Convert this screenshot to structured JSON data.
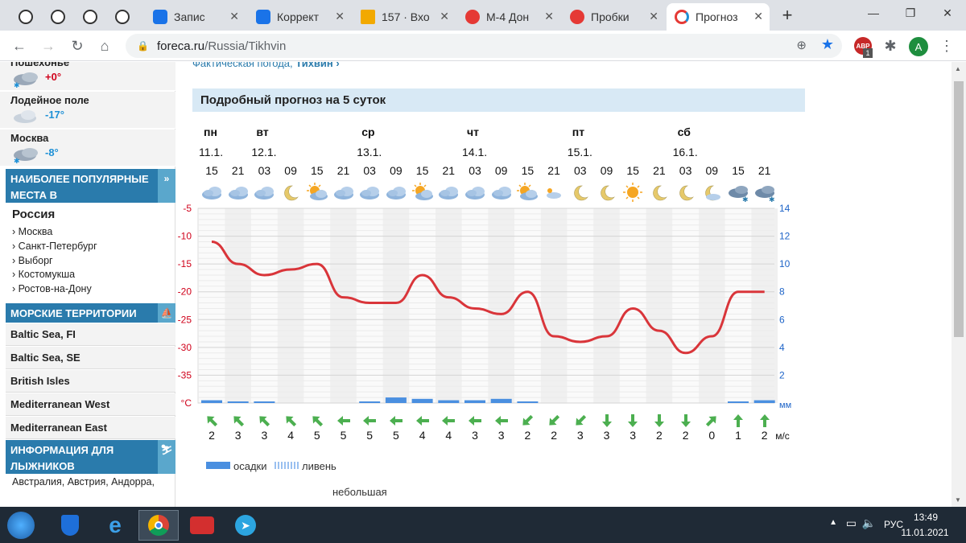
{
  "browser": {
    "tabs": [
      {
        "title": "Запис",
        "pinned": false
      },
      {
        "title": "Коррект",
        "pinned": false
      },
      {
        "title": "157 · Вхо",
        "pinned": false
      },
      {
        "title": "М-4 Дон",
        "pinned": false
      },
      {
        "title": "Пробки",
        "pinned": false
      },
      {
        "title": "Прогноз",
        "pinned": false,
        "active": true
      }
    ],
    "new_tab_label": "+",
    "url_host": "foreca.ru",
    "url_path": "/Russia/Tikhvin",
    "profile_initial": "A",
    "ext_badge": "ABP",
    "ext_count": "1"
  },
  "sidebar": {
    "cities": [
      {
        "name": "Пошехонье",
        "temp": "+0°",
        "temp_color": "#d0021b"
      },
      {
        "name": "Лодейное поле",
        "temp": "-17°",
        "temp_color": "#1e90d6"
      },
      {
        "name": "Москва",
        "temp": "-8°",
        "temp_color": "#1e90d6"
      }
    ],
    "popular_header": "НАИБОЛЕЕ ПОПУЛЯРНЫЕ МЕСТА В",
    "country": "Россия",
    "popular_links": [
      "Москва",
      "Санкт-Петербург",
      "Выборг",
      "Костомукша",
      "Ростов-на-Дону"
    ],
    "sea_header": "МОРСКИЕ ТЕРРИТОРИИ",
    "seas": [
      "Baltic Sea, FI",
      "Baltic Sea, SE",
      "British Isles",
      "Mediterranean West",
      "Mediterranean East"
    ],
    "ski_header": "ИНФОРМАЦИЯ ДЛЯ ЛЫЖНИКОВ",
    "ski_text": "Австралия, Австрия, Андорра,"
  },
  "main": {
    "actual_text": "Фактическая погода,",
    "actual_city": "Тихвин ›",
    "forecast_title": "Подробный прогноз на 5 суток",
    "days": [
      {
        "day": "пн",
        "date": "11.1."
      },
      {
        "day": "вт",
        "date": "12.1."
      },
      {
        "day": "ср",
        "date": "13.1."
      },
      {
        "day": "чт",
        "date": "14.1."
      },
      {
        "day": "пт",
        "date": "15.1."
      },
      {
        "day": "сб",
        "date": "16.1."
      }
    ],
    "hours": [
      "15",
      "21",
      "03",
      "09",
      "15",
      "21",
      "03",
      "09",
      "15",
      "21",
      "03",
      "09",
      "15",
      "21",
      "03",
      "09",
      "15",
      "21",
      "03",
      "09",
      "15",
      "21"
    ],
    "icons": [
      "cloud",
      "cloud",
      "cloud",
      "moon",
      "sun-cloud",
      "cloud",
      "cloud",
      "cloud",
      "sun-cloud",
      "cloud",
      "cloud",
      "cloud",
      "sun-cloud",
      "cloud-small",
      "moon",
      "moon",
      "sun",
      "moon",
      "moon",
      "moon-cloud",
      "snow-cloud",
      "snow-cloud"
    ],
    "wind_dirs": [
      "nw",
      "nw",
      "nw",
      "nw",
      "nw",
      "w",
      "w",
      "w",
      "w",
      "w",
      "w",
      "w",
      "sw",
      "sw",
      "sw",
      "s",
      "s",
      "s",
      "s",
      "ne",
      "n",
      "n"
    ],
    "wind_speeds": [
      "2",
      "3",
      "3",
      "4",
      "5",
      "5",
      "5",
      "5",
      "4",
      "4",
      "3",
      "3",
      "2",
      "2",
      "3",
      "3",
      "3",
      "2",
      "2",
      "0",
      "1",
      "2"
    ],
    "wind_unit": "м/с",
    "legend_rain": "осадки",
    "legend_shower": "ливень",
    "legend_small": "небольшая"
  },
  "chart_data": {
    "type": "line",
    "x": [
      "15",
      "21",
      "03",
      "09",
      "15",
      "21",
      "03",
      "09",
      "15",
      "21",
      "03",
      "09",
      "15",
      "21",
      "03",
      "09",
      "15",
      "21",
      "03",
      "09",
      "15",
      "21"
    ],
    "series": [
      {
        "values": [
          -11,
          -15,
          -17,
          -16,
          -15,
          -21,
          -22,
          -22,
          -17,
          -21,
          -23,
          -24,
          -20,
          -28,
          -29,
          -28,
          -23,
          -27,
          -31,
          -28,
          -20,
          -20
        ],
        "color": "#d9353a"
      }
    ],
    "left_axis": {
      "label": "°C",
      "ticks": [
        -5,
        -10,
        -15,
        -20,
        -25,
        -30,
        -35
      ],
      "ylim": [
        -40,
        -5
      ]
    },
    "right_axis": {
      "label": "мм",
      "ticks": [
        14,
        12,
        10,
        8,
        6,
        4,
        2
      ],
      "ylim": [
        0,
        14
      ]
    },
    "precip_mm": [
      0.2,
      0.1,
      0.1,
      0,
      0,
      0,
      0.1,
      0.4,
      0.3,
      0.2,
      0.2,
      0.3,
      0.1,
      0,
      0,
      0,
      0,
      0,
      0,
      0,
      0.1,
      0.2
    ],
    "grid": true
  },
  "taskbar": {
    "language": "РУС",
    "time": "13:49",
    "date": "11.01.2021"
  }
}
